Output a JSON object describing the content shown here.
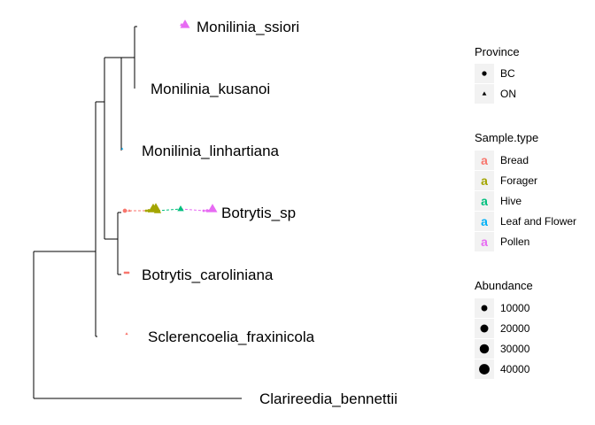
{
  "chart_data": {
    "type": "phylogenetic-tree",
    "tips": [
      {
        "label": "Monilinia_ssiori"
      },
      {
        "label": "Monilinia_kusanoi"
      },
      {
        "label": "Monilinia_linhartiana"
      },
      {
        "label": "Botrytis_sp"
      },
      {
        "label": "Botrytis_caroliniana"
      },
      {
        "label": "Sclerencoelia_fraxinicola"
      },
      {
        "label": "Clarireedia_bennettii"
      }
    ],
    "points": [
      {
        "tip": "Monilinia_ssiori",
        "province": "ON",
        "sample_type": "Pollen",
        "abundance": 2000
      },
      {
        "tip": "Monilinia_ssiori",
        "province": "ON",
        "sample_type": "Pollen",
        "abundance": 40000
      },
      {
        "tip": "Monilinia_linhartiana",
        "province": "ON",
        "sample_type": "Leaf and Flower",
        "abundance": 300
      },
      {
        "tip": "Botrytis_sp",
        "province": "BC",
        "sample_type": "Bread",
        "abundance": 3000
      },
      {
        "tip": "Botrytis_sp",
        "province": "ON",
        "sample_type": "Bread",
        "abundance": 1500
      },
      {
        "tip": "Botrytis_sp",
        "province": "BC",
        "sample_type": "Forager",
        "abundance": 300
      },
      {
        "tip": "Botrytis_sp",
        "province": "BC",
        "sample_type": "Forager",
        "abundance": 1200
      },
      {
        "tip": "Botrytis_sp",
        "province": "ON",
        "sample_type": "Forager",
        "abundance": 45000
      },
      {
        "tip": "Botrytis_sp",
        "province": "ON",
        "sample_type": "Forager",
        "abundance": 38000
      },
      {
        "tip": "Botrytis_sp",
        "province": "ON",
        "sample_type": "Forager",
        "abundance": 20000
      },
      {
        "tip": "Botrytis_sp",
        "province": "ON",
        "sample_type": "Hive",
        "abundance": 15000
      },
      {
        "tip": "Botrytis_sp",
        "province": "BC",
        "sample_type": "Pollen",
        "abundance": 300
      },
      {
        "tip": "Botrytis_sp",
        "province": "BC",
        "sample_type": "Pollen",
        "abundance": 800
      },
      {
        "tip": "Botrytis_sp",
        "province": "ON",
        "sample_type": "Pollen",
        "abundance": 40000
      },
      {
        "tip": "Botrytis_caroliniana",
        "province": "BC",
        "sample_type": "Bread",
        "abundance": 200
      },
      {
        "tip": "Botrytis_caroliniana",
        "province": "BC",
        "sample_type": "Bread",
        "abundance": 200
      },
      {
        "tip": "Botrytis_caroliniana",
        "province": "BC",
        "sample_type": "Bread",
        "abundance": 200
      },
      {
        "tip": "Sclerencoelia_fraxinicola",
        "province": "ON",
        "sample_type": "Bread",
        "abundance": 1000
      }
    ],
    "legends": [
      {
        "title": "Province",
        "entries": [
          {
            "label": "BC",
            "shape": "circle"
          },
          {
            "label": "ON",
            "shape": "triangle"
          }
        ]
      },
      {
        "title": "Sample.type",
        "key_glyph": "a",
        "entries": [
          {
            "label": "Bread",
            "color": "#F8766D"
          },
          {
            "label": "Forager",
            "color": "#A3A500"
          },
          {
            "label": "Hive",
            "color": "#00BF7D"
          },
          {
            "label": "Leaf and Flower",
            "color": "#00B0F6"
          },
          {
            "label": "Pollen",
            "color": "#E76BF3"
          }
        ]
      },
      {
        "title": "Abundance",
        "entries": [
          {
            "label": "10000",
            "value": 10000
          },
          {
            "label": "20000",
            "value": 20000
          },
          {
            "label": "30000",
            "value": 30000
          },
          {
            "label": "40000",
            "value": 40000
          }
        ]
      }
    ],
    "legend_position": "right"
  }
}
